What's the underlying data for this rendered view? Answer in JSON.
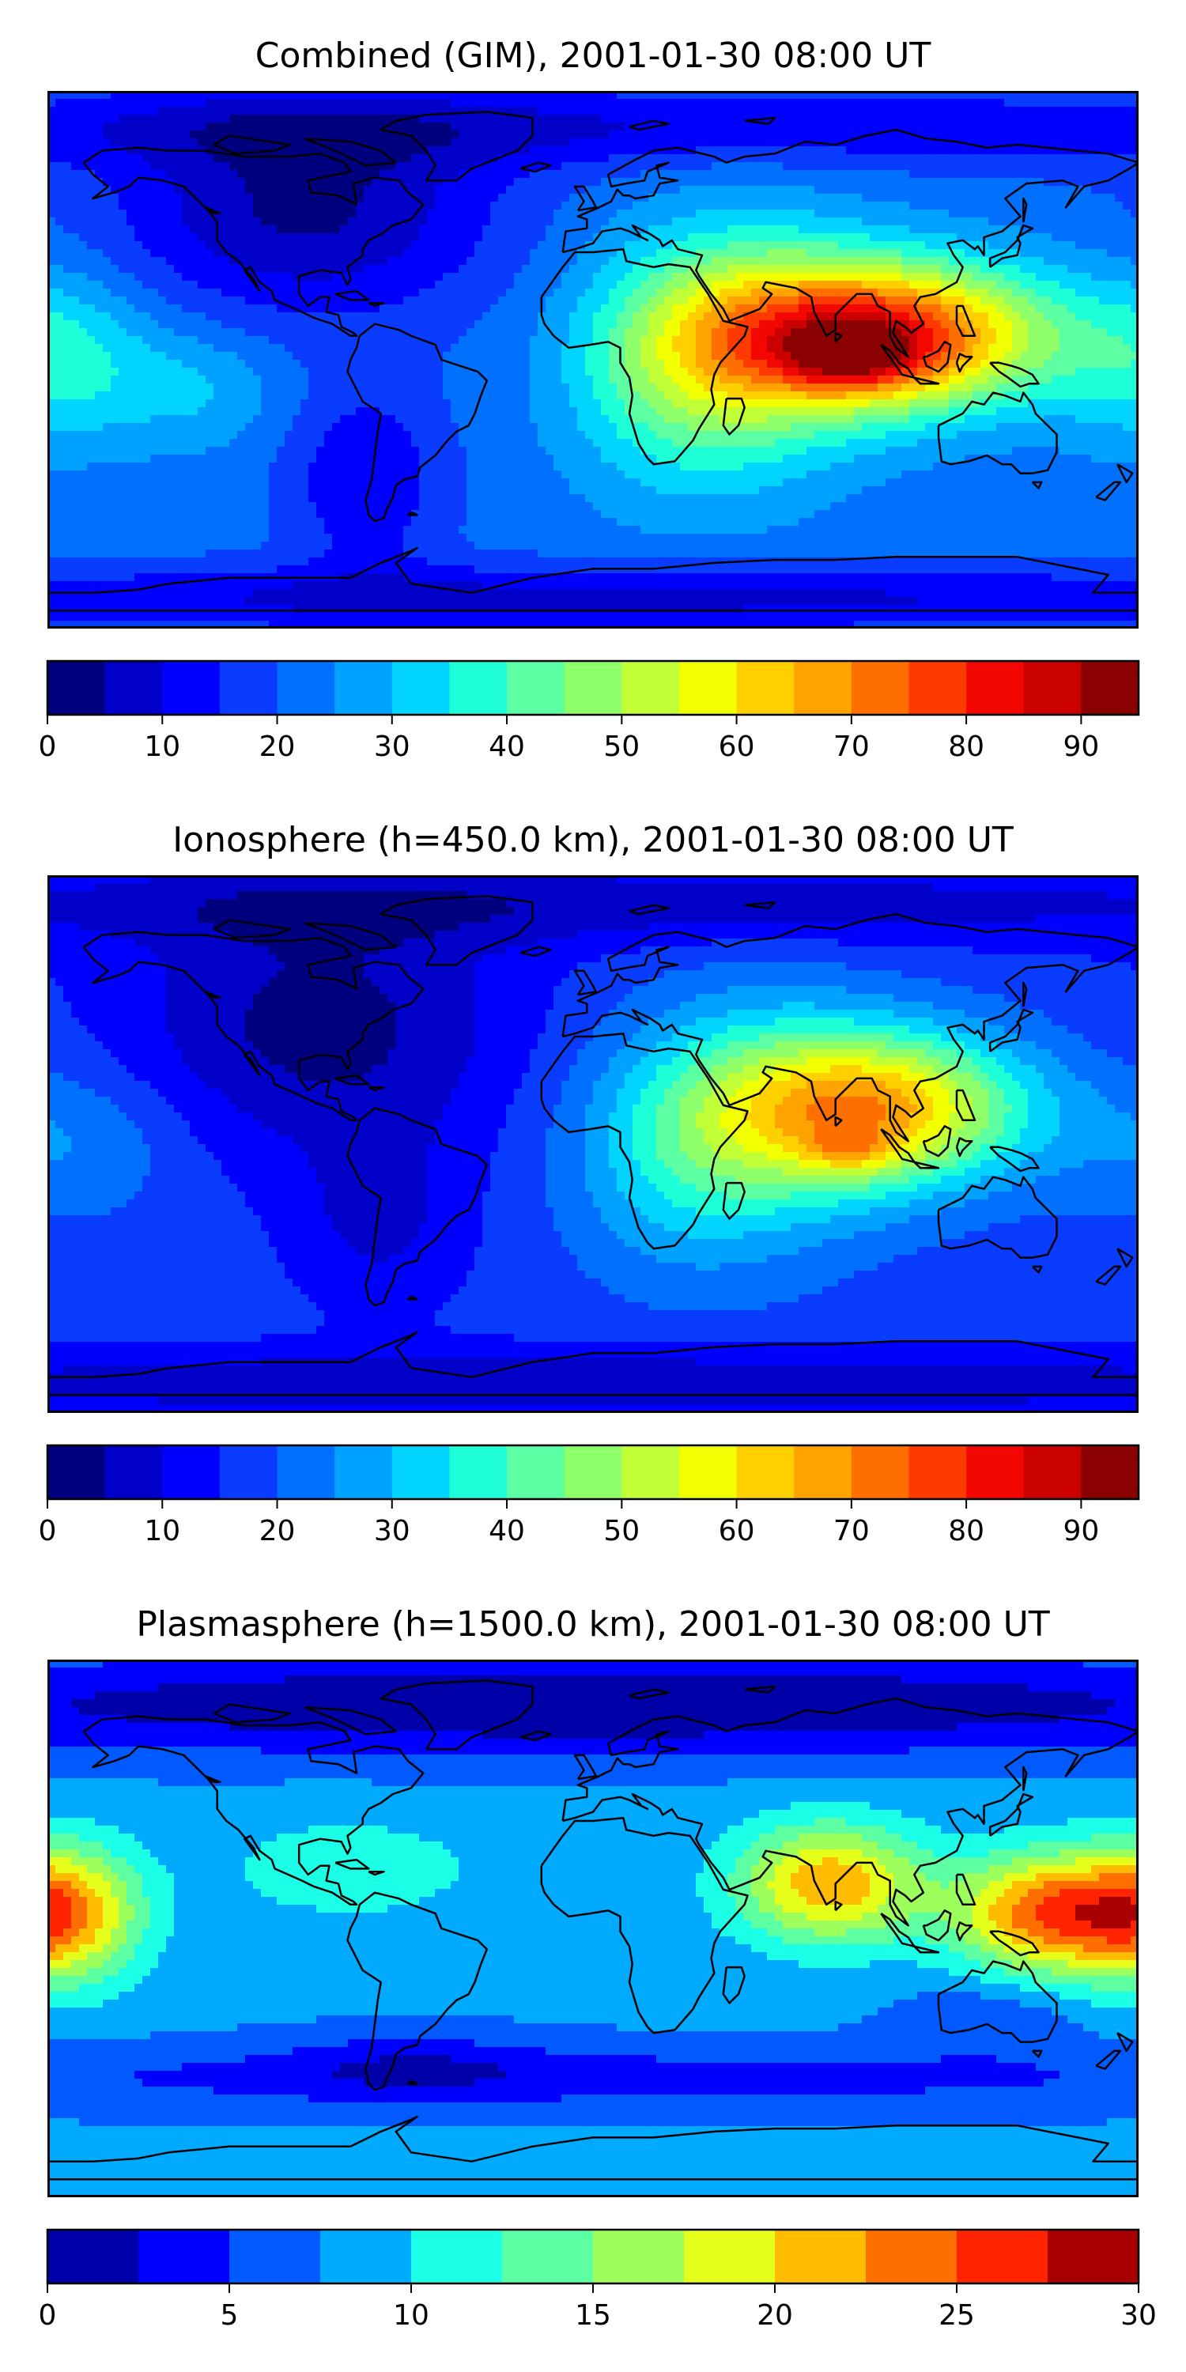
{
  "panels": [
    {
      "title": "Combined (GIM), 2001-01-30 08:00 UT",
      "levels": [
        0,
        5,
        10,
        15,
        20,
        25,
        30,
        35,
        40,
        45,
        50,
        55,
        60,
        65,
        70,
        75,
        80,
        85,
        90,
        95
      ],
      "colors": [
        "#00007f",
        "#0000c8",
        "#0000ff",
        "#0a3cff",
        "#0070ff",
        "#00a2ff",
        "#00d4ff",
        "#1effd8",
        "#5cffa1",
        "#8fff6a",
        "#c1ff37",
        "#f2ff00",
        "#ffd000",
        "#ffa300",
        "#ff6f00",
        "#ff3a00",
        "#f20800",
        "#cb0000",
        "#8b0000"
      ],
      "ticks": [
        0,
        10,
        20,
        30,
        40,
        50,
        60,
        70,
        80,
        90
      ],
      "base_value": 22,
      "blobs": [
        {
          "lon": 95,
          "lat": 8,
          "v": 60,
          "slon": 38,
          "slat": 17
        },
        {
          "lon": 85,
          "lat": 0,
          "v": 18,
          "slon": 15,
          "slat": 7
        },
        {
          "lon": 50,
          "lat": 5,
          "v": 20,
          "slon": 30,
          "slat": 30
        },
        {
          "lon": 25,
          "lat": -5,
          "v": 12,
          "slon": 25,
          "slat": 28
        },
        {
          "lon": -95,
          "lat": 50,
          "v": -18,
          "slon": 45,
          "slat": 25
        },
        {
          "lon": -75,
          "lat": -40,
          "v": -12,
          "slon": 18,
          "slat": 22
        },
        {
          "lon": 0,
          "lat": 78,
          "v": -12,
          "slon": 200,
          "slat": 10
        },
        {
          "lon": 0,
          "lat": -80,
          "v": -14,
          "slon": 200,
          "slat": 8
        },
        {
          "lon": -175,
          "lat": 0,
          "v": 14,
          "slon": 22,
          "slat": 20
        },
        {
          "lon": -130,
          "lat": -10,
          "v": 8,
          "slon": 20,
          "slat": 14
        }
      ]
    },
    {
      "title": "Ionosphere  (h=450.0 km), 2001-01-30 08:00 UT",
      "levels": [
        0,
        5,
        10,
        15,
        20,
        25,
        30,
        35,
        40,
        45,
        50,
        55,
        60,
        65,
        70,
        75,
        80,
        85,
        90,
        95
      ],
      "colors": [
        "#00007f",
        "#0000c8",
        "#0000ff",
        "#0a3cff",
        "#0070ff",
        "#00a2ff",
        "#00d4ff",
        "#1effd8",
        "#5cffa1",
        "#8fff6a",
        "#c1ff37",
        "#f2ff00",
        "#ffd000",
        "#ffa300",
        "#ff6f00",
        "#ff3a00",
        "#f20800",
        "#cb0000",
        "#8b0000"
      ],
      "ticks": [
        0,
        10,
        20,
        30,
        40,
        50,
        60,
        70,
        80,
        90
      ],
      "base_value": 17,
      "blobs": [
        {
          "lon": 95,
          "lat": 12,
          "v": 45,
          "slon": 35,
          "slat": 18
        },
        {
          "lon": 85,
          "lat": -2,
          "v": 12,
          "slon": 10,
          "slat": 5
        },
        {
          "lon": 55,
          "lat": 8,
          "v": 18,
          "slon": 32,
          "slat": 30
        },
        {
          "lon": 25,
          "lat": -5,
          "v": 10,
          "slon": 25,
          "slat": 28
        },
        {
          "lon": -90,
          "lat": 40,
          "v": -14,
          "slon": 45,
          "slat": 30
        },
        {
          "lon": -70,
          "lat": -25,
          "v": -8,
          "slon": 20,
          "slat": 22
        },
        {
          "lon": 0,
          "lat": 80,
          "v": -10,
          "slon": 200,
          "slat": 10
        },
        {
          "lon": 0,
          "lat": -80,
          "v": -12,
          "slon": 200,
          "slat": 8
        },
        {
          "lon": -170,
          "lat": 0,
          "v": 8,
          "slon": 25,
          "slat": 18
        }
      ]
    },
    {
      "title": "Plasmasphere (h=1500.0 km), 2001-01-30 08:00 UT",
      "levels": [
        0,
        2.5,
        5,
        7.5,
        10,
        12.5,
        15,
        17.5,
        20,
        22.5,
        25,
        27.5,
        30
      ],
      "colors": [
        "#0000a8",
        "#0000ff",
        "#005aff",
        "#00aaff",
        "#1affe6",
        "#5cffa1",
        "#9cff5c",
        "#e6ff1a",
        "#ffbc00",
        "#ff6f00",
        "#ff2400",
        "#a80000"
      ],
      "ticks": [
        0,
        5,
        10,
        15,
        20,
        25,
        30
      ],
      "base_value": 8,
      "blobs": [
        {
          "lon": 78,
          "lat": 15,
          "v": 14,
          "slon": 22,
          "slat": 14
        },
        {
          "lon": 150,
          "lat": 5,
          "v": 16,
          "slon": 22,
          "slat": 14
        },
        {
          "lon": -175,
          "lat": 5,
          "v": 14,
          "slon": 18,
          "slat": 16
        },
        {
          "lon": -80,
          "lat": 20,
          "v": 4,
          "slon": 30,
          "slat": 12
        },
        {
          "lon": 0,
          "lat": 75,
          "v": -8,
          "slon": 200,
          "slat": 12
        },
        {
          "lon": 0,
          "lat": -50,
          "v": -4,
          "slon": 200,
          "slat": 8
        },
        {
          "lon": -60,
          "lat": -45,
          "v": -3,
          "slon": 30,
          "slat": 8
        },
        {
          "lon": 130,
          "lat": -30,
          "v": -3,
          "slon": 20,
          "slat": 8
        }
      ]
    }
  ],
  "coastline_color": "#000000"
}
